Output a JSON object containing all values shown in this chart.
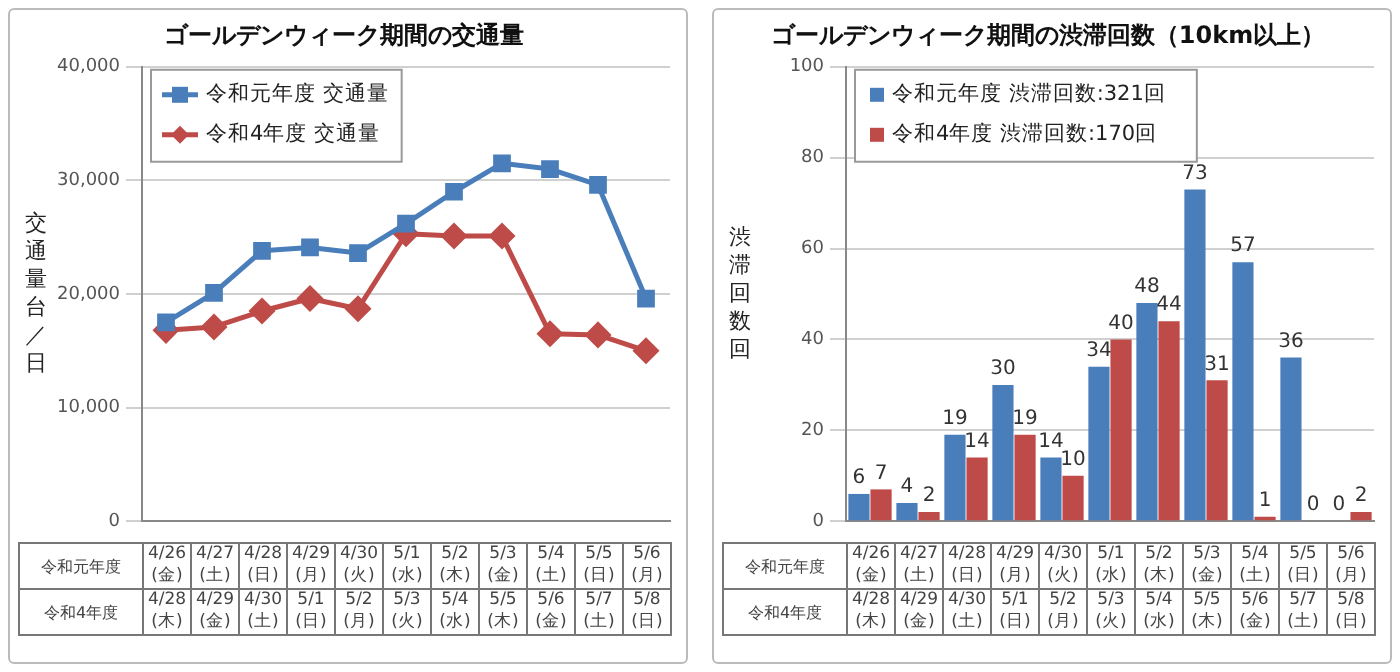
{
  "chart_data": [
    {
      "type": "line",
      "title": "ゴールデンウィーク期間の交通量",
      "ylabel": "交通量台／日",
      "categories": [
        "4/26\n(金)",
        "4/27\n(土)",
        "4/28\n(日)",
        "4/29\n(月)",
        "4/30\n(火)",
        "5/1\n(水)",
        "5/2\n(木)",
        "5/3\n(金)",
        "5/4\n(土)",
        "5/5\n(日)",
        "5/6\n(月)"
      ],
      "series": [
        {
          "name": "令和元年度 交通量",
          "color": "#4a7ebb",
          "marker": "square",
          "values": [
            17500,
            20100,
            23800,
            24100,
            23600,
            26200,
            29000,
            31500,
            31000,
            29600,
            19600
          ]
        },
        {
          "name": "令和4年度 交通量",
          "color": "#be4b48",
          "marker": "diamond",
          "values": [
            16800,
            17100,
            18500,
            19600,
            18700,
            25300,
            25100,
            25100,
            16500,
            16400,
            15000
          ]
        }
      ],
      "ylim": [
        0,
        40000
      ],
      "yticks": [
        {
          "value": 0,
          "label": "0"
        },
        {
          "value": 10000,
          "label": "10,000"
        },
        {
          "value": 20000,
          "label": "20,000"
        },
        {
          "value": 30000,
          "label": "30,000"
        },
        {
          "value": 40000,
          "label": "40,000"
        }
      ],
      "grid": "y",
      "legend": "top left",
      "line_style": "solid",
      "annotations": [
        "令和元年度",
        "令和4年度",
        "4/28\n(木)",
        "4/29\n(金)",
        "4/30\n(土)",
        "5/1\n(日)",
        "5/2\n(月)",
        "5/3\n(火)",
        "5/4\n(水)",
        "5/5\n(木)",
        "5/6\n(金)",
        "5/7\n(土)",
        "5/8\n(日)"
      ]
    },
    {
      "type": "bar",
      "title": "ゴールデンウィーク期間の渋滞回数（10km以上）",
      "ylabel": "渋滞回数回",
      "categories": [
        "4/26\n(金)",
        "4/27\n(土)",
        "4/28\n(日)",
        "4/29\n(月)",
        "4/30\n(火)",
        "5/1\n(水)",
        "5/2\n(木)",
        "5/3\n(金)",
        "5/4\n(土)",
        "5/5\n(日)",
        "5/6\n(月)"
      ],
      "series": [
        {
          "name": "令和元年度 渋滞回数:321回",
          "color": "#4a7ebb",
          "values": [
            6,
            4,
            19,
            30,
            14,
            34,
            48,
            73,
            57,
            36,
            0
          ]
        },
        {
          "name": "令和4年度 渋滞回数:170回",
          "color": "#be4b48",
          "values": [
            7,
            2,
            14,
            19,
            10,
            40,
            44,
            31,
            1,
            0,
            2
          ]
        }
      ],
      "ylim": [
        0,
        100
      ],
      "yticks": [
        0,
        20,
        40,
        60,
        80,
        100
      ],
      "grid": "y",
      "legend": "top left",
      "data_labels": true,
      "annotations": [
        "令和元年度",
        "令和4年度",
        "4/28\n(木)",
        "4/29\n(金)",
        "4/30\n(土)",
        "5/1\n(日)",
        "5/2\n(月)",
        "5/3\n(火)",
        "5/4\n(水)",
        "5/5\n(木)",
        "5/6\n(金)",
        "5/7\n(土)",
        "5/8\n(日)"
      ]
    }
  ]
}
